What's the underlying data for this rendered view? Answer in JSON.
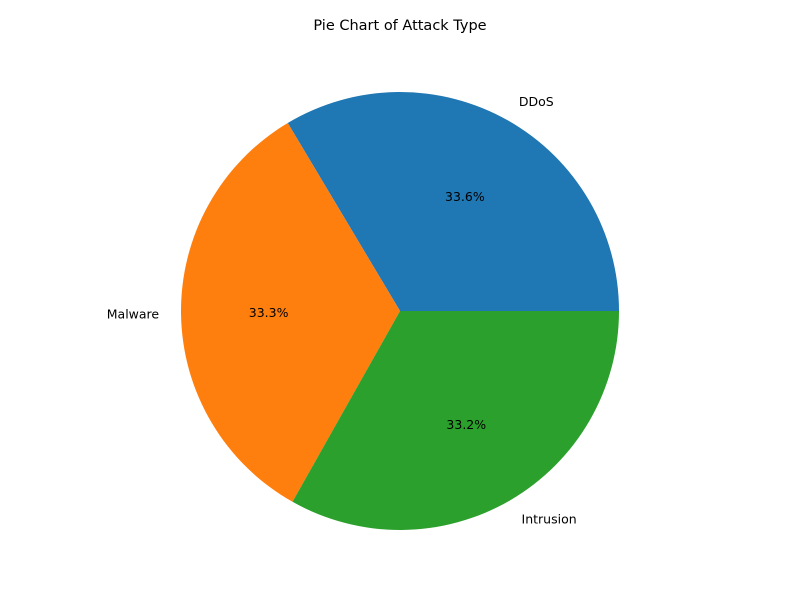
{
  "chart_data": {
    "type": "pie",
    "title": "Pie Chart of Attack Type",
    "categories": [
      "DDoS",
      "Malware",
      "Intrusion"
    ],
    "values": [
      33.6,
      33.3,
      33.2
    ],
    "percent_labels": [
      "33.6%",
      "33.3%",
      "33.2%"
    ],
    "colors": [
      "#1f77b4",
      "#ff7f0e",
      "#2ca02c"
    ],
    "start_angle_deg": 0,
    "direction": "counterclockwise",
    "legend": "none"
  }
}
